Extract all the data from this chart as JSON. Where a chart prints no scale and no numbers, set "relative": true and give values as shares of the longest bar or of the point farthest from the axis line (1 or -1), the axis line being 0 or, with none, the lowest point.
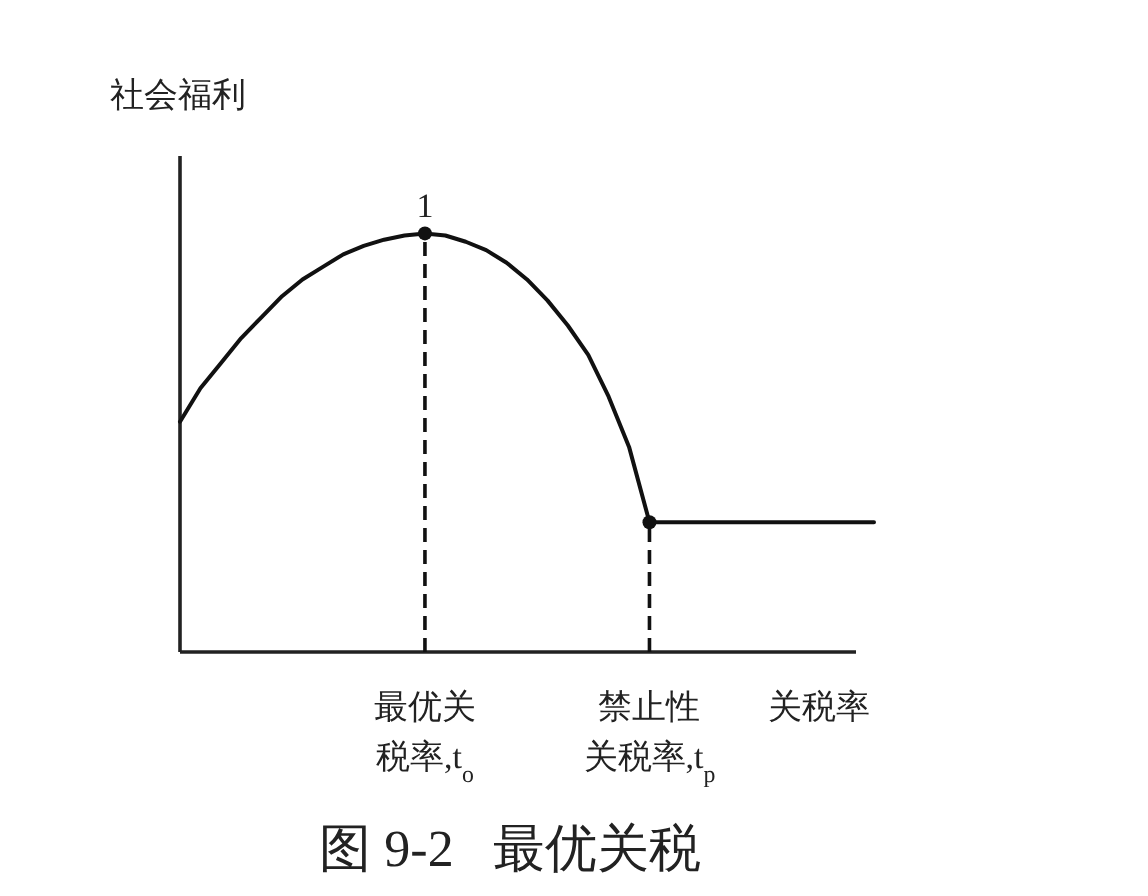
{
  "chart_data": {
    "type": "line",
    "relative": true,
    "title": "图 9-2   最优关税",
    "xlabel": "关税率",
    "ylabel": "社会福利",
    "categories": [
      null,
      null,
      null,
      null,
      null,
      null,
      null,
      null,
      null,
      null,
      null,
      null,
      "最优关税率,t$_{o}$",
      null,
      null,
      null,
      null,
      null,
      null,
      null,
      null,
      null,
      null,
      "禁止性关税率,t$_{p}$",
      null,
      null,
      null,
      null,
      null,
      null,
      null,
      null,
      null,
      null,
      null
    ],
    "series": [
      {
        "type": "line",
        "color": "#111111",
        "marker": "none",
        "values": [
          0.55,
          0.63,
          0.69,
          0.75,
          0.8,
          0.85,
          0.89,
          0.92,
          0.95,
          0.97,
          0.985,
          0.995,
          1,
          0.995,
          0.98,
          0.96,
          0.93,
          0.89,
          0.84,
          0.78,
          0.71,
          0.61,
          0.49,
          0.31,
          0.31,
          0.31,
          0.31,
          0.31,
          0.31,
          0.31,
          0.31,
          0.31,
          0.31,
          0.31,
          0.31
        ]
      },
      {
        "type": "lollipop",
        "color": "#111111",
        "marker": "circle",
        "line_style": "dashed",
        "values": [
          null,
          null,
          null,
          null,
          null,
          null,
          null,
          null,
          null,
          null,
          null,
          null,
          1,
          null,
          null,
          null,
          null,
          null,
          null,
          null,
          null,
          null,
          null,
          0.31,
          null,
          null,
          null,
          null,
          null,
          null,
          null,
          null,
          null,
          null,
          null
        ]
      }
    ],
    "annotations": [
      {
        "text": "1",
        "x": "最优关税率,t$_{o}$",
        "y": 1
      }
    ]
  }
}
